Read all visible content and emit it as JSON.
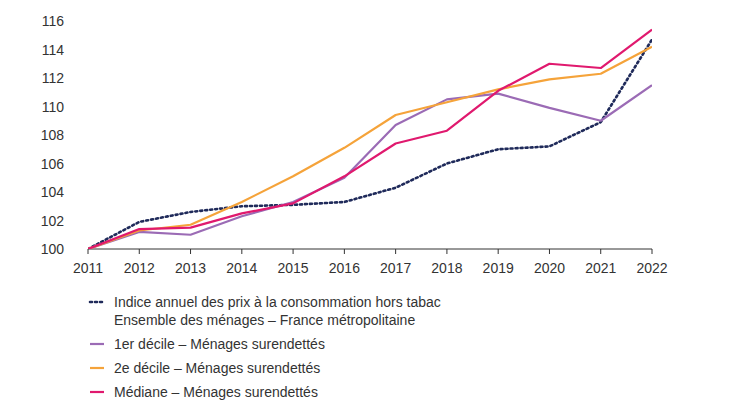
{
  "chart_data": {
    "type": "line",
    "x": [
      2011,
      2012,
      2013,
      2014,
      2015,
      2016,
      2017,
      2018,
      2019,
      2020,
      2021,
      2022
    ],
    "xlim": [
      2011,
      2022
    ],
    "xticks": [
      2011,
      2012,
      2013,
      2014,
      2015,
      2016,
      2017,
      2018,
      2019,
      2020,
      2021,
      2022
    ],
    "ylim": [
      100,
      116
    ],
    "yticks": [
      100,
      102,
      104,
      106,
      108,
      110,
      112,
      114,
      116
    ],
    "grid": false,
    "legend": "bottom",
    "series": [
      {
        "name": "Indice annuel des prix à la consommation hors tabac\nEnsemble des ménages – France métropolitaine",
        "color": "#1f2a5a",
        "line_style": "dotted",
        "values": [
          100,
          101.9,
          102.6,
          103.0,
          103.1,
          103.3,
          104.3,
          106.0,
          107.0,
          107.2,
          108.9,
          114.7
        ]
      },
      {
        "name": "1er décile – Ménages surendettés",
        "color": "#9b6bb5",
        "line_style": "solid",
        "values": [
          100,
          101.2,
          101.0,
          102.3,
          103.3,
          105.0,
          108.7,
          110.5,
          110.9,
          109.9,
          109.0,
          111.5
        ]
      },
      {
        "name": "2e décile – Ménages surendettés",
        "color": "#f5a33a",
        "line_style": "solid",
        "values": [
          100,
          101.3,
          101.7,
          103.3,
          105.1,
          107.1,
          109.4,
          110.3,
          111.2,
          111.9,
          112.3,
          114.2
        ]
      },
      {
        "name": "Médiane – Ménages surendettés",
        "color": "#e0196e",
        "line_style": "solid",
        "values": [
          100,
          101.4,
          101.5,
          102.5,
          103.2,
          105.1,
          107.4,
          108.3,
          111.1,
          113.0,
          112.7,
          115.4
        ]
      }
    ]
  }
}
